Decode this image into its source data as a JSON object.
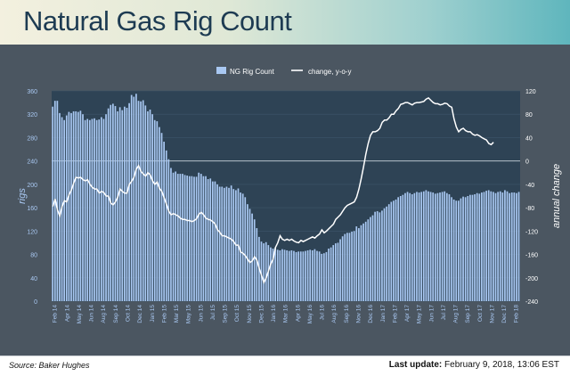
{
  "header": {
    "title": "Natural Gas Rig Count"
  },
  "footer": {
    "source": "Source: Baker Hughes",
    "update_label": "Last update:",
    "update_value": "February 9, 2018, 13:06 EST"
  },
  "colors": {
    "bar": "#a9c8f2",
    "line": "#ffffff",
    "plot_bg": "#2e4355",
    "axis_text": "#a9c8f2"
  },
  "chart_data": {
    "type": "bar",
    "title": "",
    "legend": [
      {
        "name": "NG Rig Count",
        "kind": "bar"
      },
      {
        "name": "change, y-o-y",
        "kind": "line"
      }
    ],
    "legend_position": "top-center",
    "ylabel_left": "rigs",
    "ylabel_right": "annual change",
    "ylim_left": [
      0,
      360
    ],
    "ylim_right": [
      -240,
      120
    ],
    "yticks_left": [
      "0",
      "40",
      "80",
      "120",
      "160",
      "200",
      "240",
      "280",
      "320",
      "360"
    ],
    "yticks_right": [
      "-240",
      "-200",
      "-160",
      "-120",
      "-80",
      "-40",
      "0",
      "40",
      "80",
      "120"
    ],
    "x_tick_labels": [
      "Feb 14",
      "Apr 14",
      "May 14",
      "Jun 14",
      "Aug 14",
      "Sep 14",
      "Oct 14",
      "Dec 14",
      "Jan 15",
      "Feb 15",
      "Mar 15",
      "May 15",
      "Jun 15",
      "Jul 15",
      "Sep 15",
      "Oct 15",
      "Nov 15",
      "Dec 15",
      "Jan 16",
      "Mar 16",
      "Apr 16",
      "May 16",
      "Jul 16",
      "Aug 16",
      "Sep 16",
      "Nov 16",
      "Dec 16",
      "Jan 17",
      "Feb 17",
      "Apr 17",
      "May 17",
      "Jun 17",
      "Jul 17",
      "Aug 17",
      "Sep 17",
      "Oct 17",
      "Nov 17",
      "Dec 17",
      "Feb 18"
    ],
    "series": [
      {
        "name": "NG Rig Count",
        "type": "bar",
        "axis": "left",
        "values": [
          333,
          343,
          343,
          322,
          315,
          310,
          318,
          324,
          322,
          325,
          325,
          324,
          326,
          320,
          310,
          312,
          310,
          312,
          313,
          310,
          311,
          315,
          312,
          320,
          330,
          336,
          338,
          334,
          325,
          332,
          327,
          333,
          331,
          339,
          353,
          350,
          355,
          343,
          342,
          344,
          335,
          325,
          328,
          320,
          310,
          308,
          298,
          288,
          273,
          258,
          243,
          228,
          220,
          222,
          218,
          218,
          218,
          216,
          215,
          214,
          214,
          213,
          213,
          220,
          218,
          214,
          214,
          209,
          210,
          205,
          205,
          200,
          196,
          196,
          194,
          196,
          194,
          198,
          192,
          190,
          193,
          186,
          184,
          178,
          166,
          158,
          150,
          140,
          125,
          110,
          102,
          99,
          101,
          96,
          92,
          90,
          92,
          88,
          87,
          89,
          88,
          87,
          86,
          87,
          86,
          84,
          85,
          85,
          85,
          86,
          87,
          88,
          87,
          89,
          86,
          85,
          81,
          82,
          84,
          90,
          92,
          96,
          99,
          100,
          106,
          111,
          115,
          117,
          117,
          119,
          120,
          128,
          125,
          130,
          133,
          136,
          140,
          144,
          147,
          153,
          154,
          152,
          155,
          159,
          162,
          166,
          170,
          172,
          174,
          178,
          180,
          182,
          185,
          187,
          185,
          183,
          185,
          187,
          186,
          187,
          188,
          190,
          188,
          187,
          186,
          184,
          185,
          186,
          187,
          188,
          185,
          183,
          178,
          174,
          172,
          172,
          176,
          179,
          178,
          180,
          182,
          182,
          183,
          185,
          184,
          186,
          187,
          189,
          190,
          188,
          187,
          185,
          187,
          188,
          186,
          190,
          188,
          185,
          186,
          186,
          185,
          187
        ]
      },
      {
        "name": "change, y-o-y",
        "type": "line",
        "axis": "right",
        "values": [
          -78,
          -65,
          -84,
          -94,
          -78,
          -68,
          -70,
          -58,
          -50,
          -38,
          -28,
          -29,
          -28,
          -32,
          -34,
          -32,
          -40,
          -45,
          -48,
          -48,
          -55,
          -52,
          -54,
          -60,
          -60,
          -72,
          -75,
          -70,
          -62,
          -48,
          -52,
          -55,
          -55,
          -40,
          -35,
          -28,
          -14,
          -8,
          -18,
          -22,
          -26,
          -20,
          -24,
          -34,
          -40,
          -36,
          -47,
          -52,
          -63,
          -74,
          -86,
          -92,
          -90,
          -92,
          -94,
          -98,
          -100,
          -100,
          -102,
          -102,
          -104,
          -102,
          -99,
          -91,
          -88,
          -92,
          -98,
          -100,
          -101,
          -104,
          -108,
          -118,
          -122,
          -128,
          -128,
          -130,
          -132,
          -134,
          -138,
          -144,
          -144,
          -156,
          -158,
          -162,
          -168,
          -174,
          -171,
          -164,
          -170,
          -184,
          -196,
          -208,
          -200,
          -188,
          -176,
          -168,
          -148,
          -140,
          -128,
          -134,
          -136,
          -134,
          -136,
          -134,
          -137,
          -139,
          -140,
          -136,
          -138,
          -136,
          -134,
          -132,
          -130,
          -132,
          -128,
          -125,
          -118,
          -123,
          -120,
          -116,
          -112,
          -108,
          -100,
          -96,
          -92,
          -86,
          -80,
          -76,
          -74,
          -72,
          -70,
          -62,
          -48,
          -30,
          -10,
          12,
          30,
          44,
          50,
          50,
          52,
          56,
          66,
          70,
          70,
          74,
          80,
          80,
          86,
          90,
          97,
          98,
          100,
          100,
          98,
          96,
          99,
          100,
          100,
          101,
          102,
          106,
          108,
          104,
          100,
          98,
          98,
          96,
          97,
          99,
          98,
          94,
          92,
          72,
          58,
          50,
          54,
          56,
          52,
          50,
          50,
          46,
          44,
          45,
          43,
          40,
          38,
          36,
          30,
          28,
          32
        ]
      }
    ]
  }
}
